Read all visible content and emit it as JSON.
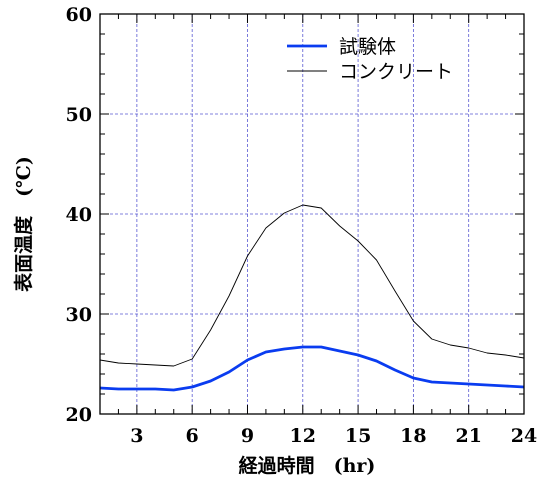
{
  "chart_data": {
    "type": "line",
    "xlabel": "経過時間　(hr)",
    "ylabel": "表面温度　(℃)",
    "xlim": [
      1,
      24
    ],
    "ylim": [
      20,
      60
    ],
    "x_ticks": [
      3,
      6,
      9,
      12,
      15,
      18,
      21,
      24
    ],
    "y_ticks": [
      20,
      30,
      40,
      50,
      60
    ],
    "grid": true,
    "legend": "top-right",
    "series": [
      {
        "name": "試験体",
        "color": "#0a3cf0",
        "x": [
          1,
          2,
          3,
          4,
          5,
          6,
          7,
          8,
          9,
          10,
          11,
          12,
          13,
          14,
          15,
          16,
          17,
          18,
          19,
          20,
          21,
          22,
          23,
          24
        ],
        "y": [
          22.6,
          22.5,
          22.5,
          22.5,
          22.4,
          22.7,
          23.3,
          24.2,
          25.4,
          26.2,
          26.5,
          26.7,
          26.7,
          26.3,
          25.9,
          25.3,
          24.4,
          23.6,
          23.2,
          23.1,
          23.0,
          22.9,
          22.8,
          22.7
        ],
        "style": "thick"
      },
      {
        "name": "コンクリート",
        "color": "#000000",
        "x": [
          1,
          2,
          3,
          4,
          5,
          6,
          7,
          8,
          9,
          10,
          11,
          12,
          13,
          14,
          15,
          16,
          17,
          18,
          19,
          20,
          21,
          22,
          23,
          24
        ],
        "y": [
          25.4,
          25.1,
          25.0,
          24.9,
          24.8,
          25.5,
          28.4,
          31.8,
          35.8,
          38.6,
          40.1,
          40.9,
          40.6,
          38.8,
          37.3,
          35.4,
          32.3,
          29.3,
          27.5,
          26.9,
          26.6,
          26.1,
          25.9,
          25.6
        ],
        "style": "thin"
      }
    ]
  }
}
